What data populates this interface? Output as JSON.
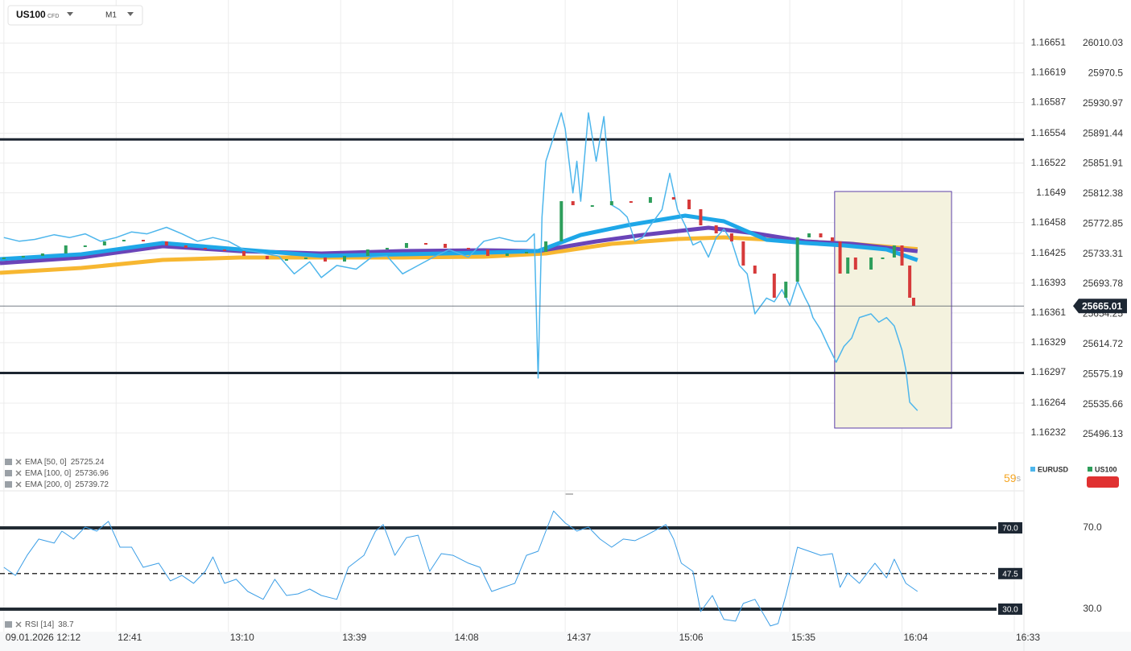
{
  "toolbar": {
    "symbol": "US100",
    "symbol_type": "CFD",
    "timeframe": "M1"
  },
  "chart_data": [
    {
      "type": "candlestick",
      "countdown": "59",
      "countdown_unit": "s",
      "xlim": [
        731,
        995.5
      ],
      "xticks": [
        {
          "value": 732,
          "label": "09.01.2026 12:12"
        },
        {
          "value": 761,
          "label": "12:41"
        },
        {
          "value": 790,
          "label": "13:10"
        },
        {
          "value": 819,
          "label": "13:39"
        },
        {
          "value": 848,
          "label": "14:08"
        },
        {
          "value": 877,
          "label": "14:37"
        },
        {
          "value": 906,
          "label": "15:06"
        },
        {
          "value": 935,
          "label": "15:35"
        },
        {
          "value": 964,
          "label": "16:04"
        },
        {
          "value": 993,
          "label": "16:33"
        }
      ],
      "ylim": [
        1.16213,
        1.16667
      ],
      "yticks": [
        1.16651,
        1.16619,
        1.16587,
        1.16554,
        1.16522,
        1.1649,
        1.16458,
        1.16425,
        1.16393,
        1.16361,
        1.16329,
        1.16297,
        1.16264,
        1.16232
      ],
      "y2lim": [
        25474.96,
        26030.14
      ],
      "y2ticks": [
        26010.03,
        25970.5,
        25930.97,
        25891.44,
        25851.91,
        25812.38,
        25772.85,
        25733.31,
        25693.78,
        25654.25,
        25614.72,
        25575.19,
        25535.66,
        25496.13
      ],
      "grid": true,
      "series": [
        {
          "name": "EURUSD",
          "color": "#4db6ec",
          "axis": "y",
          "style": "line",
          "x": [
            732,
            736,
            740,
            745,
            749,
            753,
            757,
            761,
            765,
            769,
            774,
            778,
            782,
            786,
            790,
            794,
            799,
            803,
            807,
            811,
            814,
            818,
            823,
            827,
            831,
            835,
            839,
            843,
            847,
            852,
            856,
            860,
            864,
            867,
            869,
            870,
            871,
            872,
            874,
            876,
            877,
            878,
            879,
            880,
            881,
            883,
            885,
            887,
            889,
            891,
            893,
            895,
            897,
            899,
            902,
            904,
            906,
            908,
            910,
            912,
            914,
            916,
            918,
            920,
            922,
            924,
            926,
            929,
            931,
            933,
            935,
            937,
            939,
            940,
            941,
            943,
            945,
            947,
            949,
            951,
            953,
            956,
            958,
            960,
            962,
            964,
            965,
            966,
            968
          ],
          "values": [
            1.16442,
            1.16438,
            1.1644,
            1.16445,
            1.16442,
            1.16446,
            1.16438,
            1.16442,
            1.16448,
            1.16446,
            1.16453,
            1.16446,
            1.16438,
            1.16442,
            1.16438,
            1.16429,
            1.16425,
            1.16422,
            1.16403,
            1.16416,
            1.16399,
            1.16412,
            1.16408,
            1.16421,
            1.16422,
            1.16403,
            1.16412,
            1.16421,
            1.16429,
            1.16421,
            1.16438,
            1.16442,
            1.16438,
            1.16438,
            1.16446,
            1.16291,
            1.16464,
            1.16524,
            1.1655,
            1.16576,
            1.16559,
            1.16524,
            1.1649,
            1.16524,
            1.16481,
            1.16576,
            1.16524,
            1.16572,
            1.16477,
            1.16472,
            1.16464,
            1.16438,
            1.16442,
            1.16455,
            1.16472,
            1.16511,
            1.16472,
            1.16455,
            1.16434,
            1.16438,
            1.16421,
            1.16442,
            1.16451,
            1.16438,
            1.16412,
            1.16403,
            1.1636,
            1.16377,
            1.16373,
            1.16386,
            1.16369,
            1.16395,
            1.16377,
            1.16369,
            1.16356,
            1.16343,
            1.16325,
            1.16308,
            1.16325,
            1.16334,
            1.16356,
            1.1636,
            1.16351,
            1.16356,
            1.16347,
            1.16321,
            1.163,
            1.16265,
            1.16256
          ]
        },
        {
          "name": "US100",
          "color": "#2e9e5b",
          "down_color": "#d63a3a",
          "axis": "y2",
          "style": "candle",
          "x": [
            732,
            737,
            742,
            748,
            753,
            758,
            763,
            768,
            774,
            779,
            784,
            789,
            794,
            800,
            805,
            810,
            815,
            820,
            826,
            831,
            836,
            841,
            846,
            852,
            857,
            862,
            867,
            872,
            876,
            879,
            884,
            889,
            894,
            899,
            905,
            909,
            912,
            916,
            920,
            923,
            926,
            931,
            934,
            937,
            940,
            943,
            946,
            948,
            950,
            952,
            956,
            959,
            962,
            964,
            966,
            967
          ],
          "values": [
            25728.75,
            25730.87,
            25734.04,
            25744.61,
            25744.61,
            25749.9,
            25752.02,
            25749.9,
            25744.61,
            25741.44,
            25739.33,
            25737.21,
            25730.87,
            25726.64,
            25726.64,
            25728.75,
            25723.46,
            25730.87,
            25739.33,
            25741.44,
            25747.79,
            25746.73,
            25741.44,
            25739.33,
            25730.87,
            25734.04,
            25736.15,
            25749.9,
            25802.78,
            25797.49,
            25797.49,
            25802.78,
            25800.66,
            25808.06,
            25804.89,
            25792.2,
            25771.05,
            25760.48,
            25749.9,
            25718.18,
            25707.6,
            25675.88,
            25697.03,
            25755.19,
            25760.48,
            25755.19,
            25749.9,
            25707.6,
            25728.75,
            25712.89,
            25728.75,
            25728.75,
            25744.61,
            25718.18,
            25675.88,
            25665.01
          ]
        }
      ],
      "indicators": [
        {
          "name": "EMA [50, 0]",
          "color": "#1ea7e8",
          "axis": "y2",
          "x": [
            731,
            752,
            773,
            793,
            814,
            835,
            856,
            870,
            881,
            893,
            908,
            918,
            929,
            939,
            949,
            960,
            968
          ],
          "values": [
            25726.64,
            25732.98,
            25747.79,
            25739.33,
            25730.87,
            25732.98,
            25735.1,
            25737.21,
            25758.36,
            25771.05,
            25783.74,
            25776.34,
            25752.02,
            25747.79,
            25744.61,
            25739.33,
            25725.24
          ]
        },
        {
          "name": "EMA [100, 0]",
          "color": "#6a44b8",
          "axis": "y2",
          "x": [
            731,
            752,
            773,
            793,
            814,
            835,
            856,
            870,
            885,
            897,
            914,
            926,
            939,
            951,
            968
          ],
          "values": [
            25721.35,
            25728.75,
            25743.56,
            25737.21,
            25734.04,
            25737.21,
            25738.27,
            25737.21,
            25749.9,
            25758.36,
            25767.88,
            25760.48,
            25749.9,
            25746.73,
            25736.96
          ]
        },
        {
          "name": "EMA [200, 0]",
          "color": "#f7b731",
          "axis": "y2",
          "x": [
            731,
            752,
            773,
            793,
            814,
            835,
            856,
            872,
            889,
            906,
            918,
            939,
            951,
            968
          ],
          "values": [
            25708.66,
            25715.0,
            25725.58,
            25728.75,
            25728.75,
            25728.75,
            25729.81,
            25734.04,
            25746.73,
            25753.07,
            25755.19,
            25749.9,
            25746.73,
            25739.72
          ]
        }
      ],
      "hlines": [
        {
          "value": 25884,
          "color": "#1c2530"
        },
        {
          "value": 25577,
          "color": "#1c2530"
        }
      ],
      "box": {
        "x": [
          946.6,
          976.8
        ],
        "y": [
          25504.6,
          25815.5
        ],
        "color": "#5b3fa8",
        "fill": "#f4f2de"
      }
    },
    {
      "type": "line",
      "ylim": [
        20,
        86
      ],
      "yticks": [
        {
          "value": 70,
          "label": "70.0"
        },
        {
          "value": 30,
          "label": "30.0"
        }
      ],
      "levels": [
        {
          "value": 70,
          "label": "70.0",
          "style": "solid"
        },
        {
          "value": 47.5,
          "label": "47.5",
          "style": "dashed"
        },
        {
          "value": 30,
          "label": "30.0",
          "style": "solid"
        }
      ],
      "series": [
        {
          "name": "RSI [14]",
          "color": "#3b9ee6",
          "x": [
            732,
            735,
            738,
            741,
            745,
            747,
            750,
            753,
            756,
            759,
            762,
            765,
            768,
            772,
            775,
            778,
            781,
            784,
            786,
            789,
            792,
            795,
            799,
            802,
            805,
            808,
            811,
            814,
            818,
            821,
            825,
            828,
            830,
            833,
            836,
            839,
            842,
            845,
            848,
            852,
            855,
            858,
            861,
            864,
            867,
            870,
            874,
            877,
            880,
            883,
            886,
            889,
            892,
            895,
            898,
            903,
            905,
            907,
            910,
            912,
            915,
            918,
            921,
            923,
            926,
            930,
            932,
            934,
            937,
            940,
            943,
            946,
            948,
            950,
            953,
            957,
            960,
            962,
            965,
            968
          ],
          "values": [
            50.6,
            46.6,
            56.5,
            64.5,
            62.5,
            68.4,
            64.5,
            70.4,
            68.4,
            73.2,
            60.5,
            60.5,
            50.6,
            52.6,
            43.9,
            46.6,
            42.7,
            48.6,
            55.7,
            42.7,
            44.7,
            38.7,
            34.8,
            44.7,
            36.7,
            37.5,
            39.9,
            36.7,
            34.8,
            50.6,
            56.5,
            68.4,
            71.6,
            56.5,
            65.2,
            66.4,
            48.6,
            57.3,
            56.5,
            52.6,
            50.6,
            38.7,
            40.7,
            42.7,
            56.5,
            58.5,
            78.3,
            72.4,
            68.4,
            70.4,
            64.5,
            60.5,
            64.5,
            63.7,
            66.4,
            71.6,
            64.5,
            52.6,
            48.6,
            28.8,
            36.7,
            24.9,
            24.1,
            32.8,
            34.8,
            21.7,
            22.9,
            36.7,
            60.5,
            58.5,
            56.5,
            57.3,
            40.7,
            47.8,
            42.7,
            52.6,
            45.4,
            54.6,
            42.7,
            38.7
          ]
        }
      ]
    }
  ]
}
